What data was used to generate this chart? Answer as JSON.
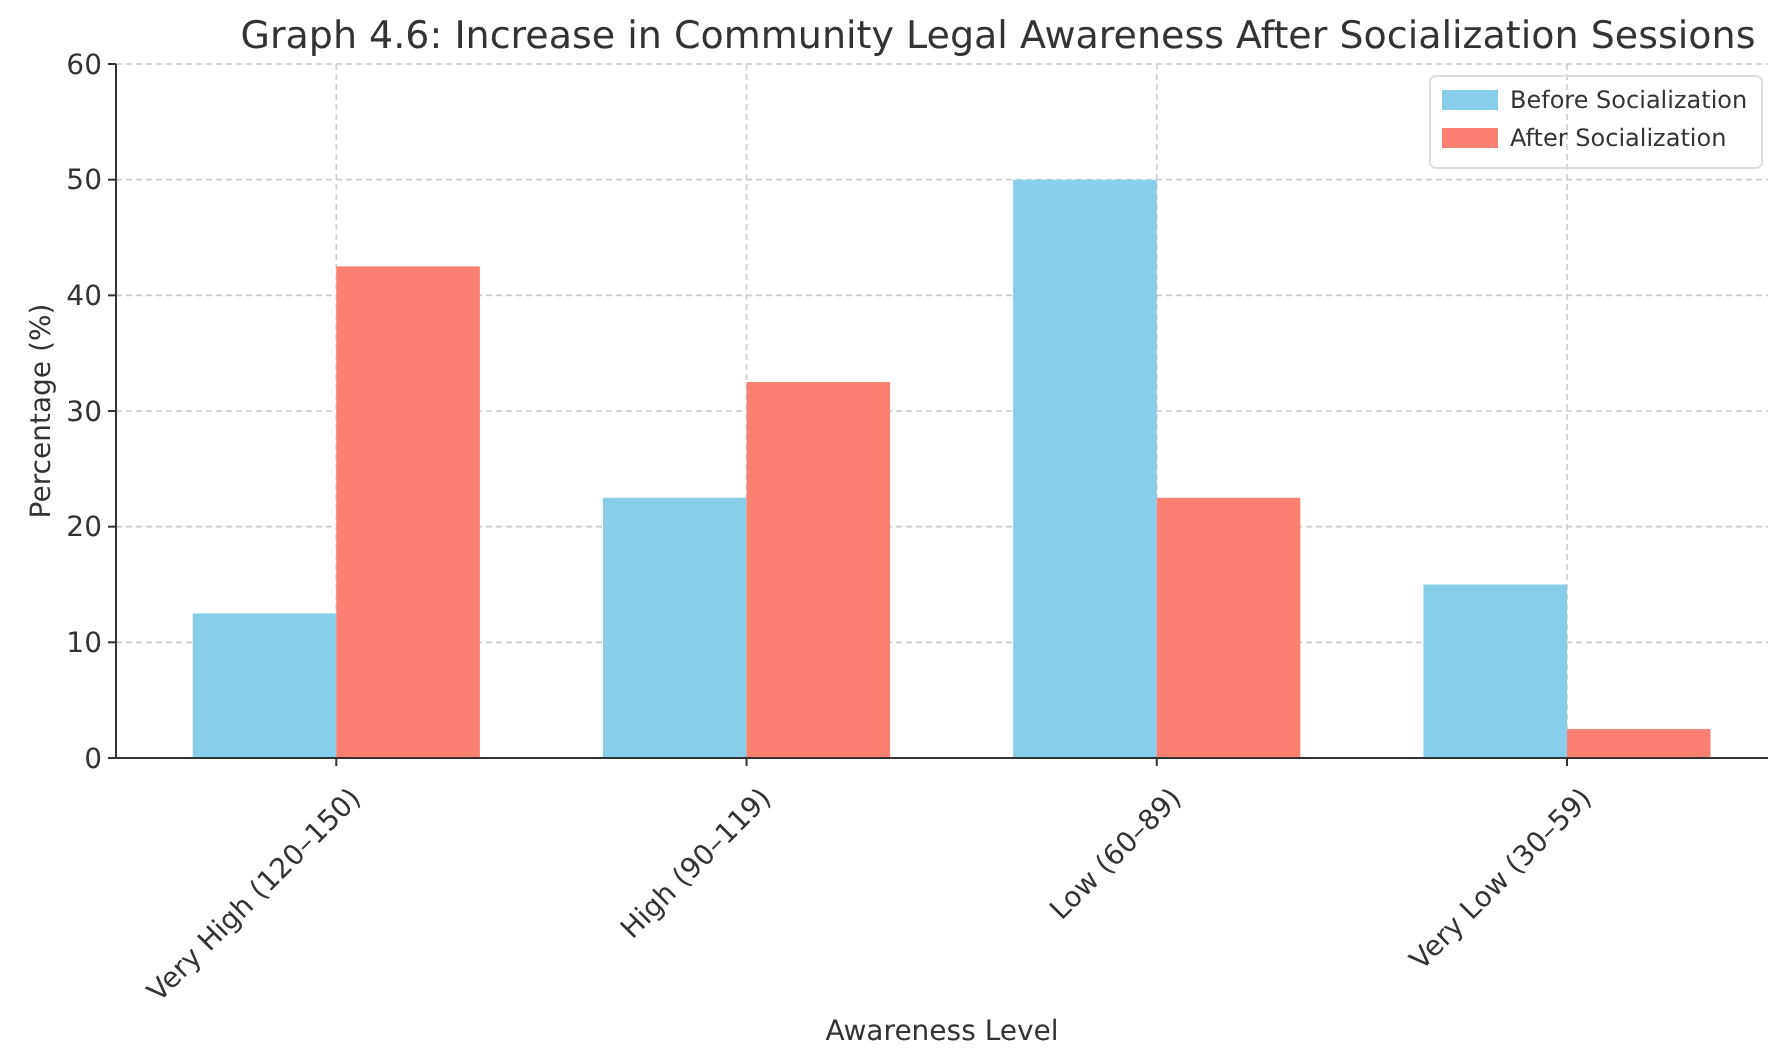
{
  "chart_data": {
    "type": "bar",
    "title": "Graph 4.6: Increase in Community Legal Awareness After Socialization Sessions",
    "xlabel": "Awareness Level",
    "ylabel": "Percentage (%)",
    "categories": [
      "Very High (120–150)",
      "High (90–119)",
      "Low (60–89)",
      "Very Low (30–59)"
    ],
    "series": [
      {
        "name": "Before Socialization",
        "color": "#87ceeb",
        "values": [
          12.5,
          22.5,
          50,
          15
        ]
      },
      {
        "name": "After Socialization",
        "color": "#fa8072",
        "values": [
          42.5,
          32.5,
          22.5,
          2.5
        ]
      }
    ],
    "ylim": [
      0,
      60
    ],
    "yticks": [
      0,
      10,
      20,
      30,
      40,
      50,
      60
    ],
    "grid": true,
    "legend": "top right"
  }
}
